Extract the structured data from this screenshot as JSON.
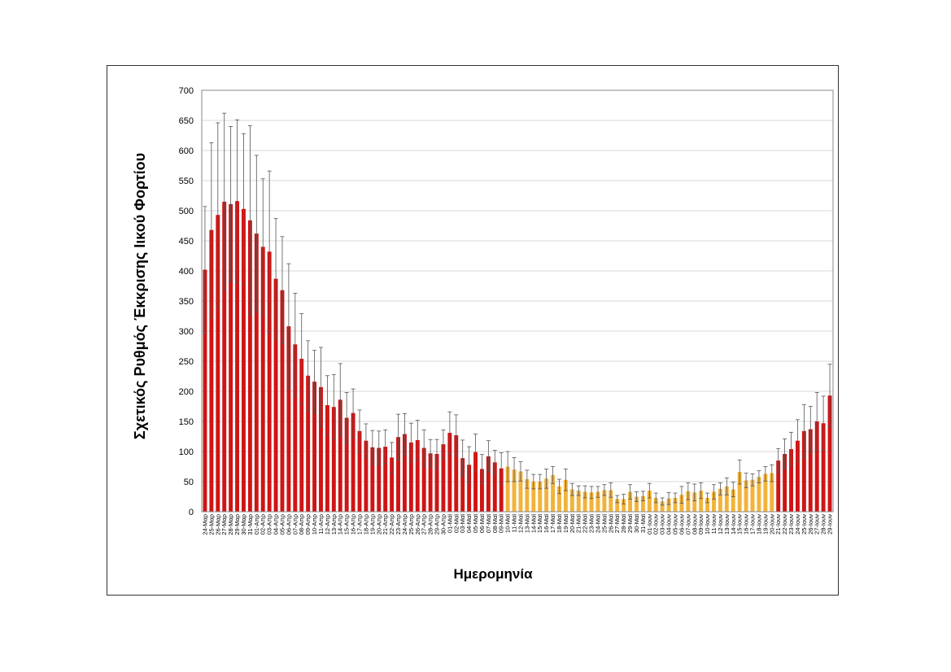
{
  "chart_data": {
    "type": "bar",
    "xlabel": "Ημερομηνία",
    "ylabel": "Σχετικός Ρυθμός Έκκρισης Ιικού Φορτίου",
    "ylim": [
      0,
      700
    ],
    "yticks": [
      0,
      50,
      100,
      150,
      200,
      250,
      300,
      350,
      400,
      450,
      500,
      550,
      600,
      650,
      700
    ],
    "grid": "horizontal",
    "colors": {
      "high": "#d01414",
      "low": "#f2b33a",
      "error_bar": "#555555",
      "grid": "#d9d9d9"
    },
    "categories": [
      "24-Μαρ",
      "25-Μαρ",
      "26-Μαρ",
      "27-Μαρ",
      "28-Μαρ",
      "29-Μαρ",
      "30-Μαρ",
      "31-Μαρ",
      "01-Απρ",
      "02-Απρ",
      "03-Απρ",
      "04-Απρ",
      "05-Απρ",
      "06-Απρ",
      "07-Απρ",
      "08-Απρ",
      "09-Απρ",
      "10-Απρ",
      "11-Απρ",
      "12-Απρ",
      "13-Απρ",
      "14-Απρ",
      "15-Απρ",
      "16-Απρ",
      "17-Απρ",
      "18-Απρ",
      "19-Απρ",
      "20-Απρ",
      "21-Απρ",
      "22-Απρ",
      "23-Απρ",
      "24-Απρ",
      "25-Απρ",
      "26-Απρ",
      "27-Απρ",
      "28-Απρ",
      "29-Απρ",
      "30-Απρ",
      "01-Μαϊ",
      "02-Μαϊ",
      "03-Μαϊ",
      "04-Μαϊ",
      "05-Μαϊ",
      "06-Μαϊ",
      "07-Μαϊ",
      "08-Μαϊ",
      "09-Μαϊ",
      "10-Μαϊ",
      "11-Μαϊ",
      "12-Μαϊ",
      "13-Μαϊ",
      "14-Μαϊ",
      "15-Μαϊ",
      "16-Μαϊ",
      "17-Μαϊ",
      "18-Μαϊ",
      "19-Μαϊ",
      "20-Μαϊ",
      "21-Μαϊ",
      "22-Μαϊ",
      "23-Μαϊ",
      "24-Μαϊ",
      "25-Μαϊ",
      "26-Μαϊ",
      "27-Μαϊ",
      "28-Μαϊ",
      "29-Μαϊ",
      "30-Μαϊ",
      "31-Μαϊ",
      "01-Ιουν",
      "02-Ιουν",
      "03-Ιουν",
      "04-Ιουν",
      "05-Ιουν",
      "06-Ιουν",
      "07-Ιουν",
      "08-Ιουν",
      "09-Ιουν",
      "10-Ιουν",
      "11-Ιουν",
      "12-Ιουν",
      "13-Ιουν",
      "14-Ιουν",
      "15-Ιουν",
      "16-Ιουν",
      "17-Ιουν",
      "18-Ιουν",
      "19-Ιουν",
      "20-Ιουν",
      "21-Ιουν",
      "22-Ιουν",
      "23-Ιουν",
      "24-Ιουν",
      "25-Ιουν",
      "26-Ιουν",
      "27-Ιουν",
      "28-Ιουν",
      "29-Ιουν"
    ],
    "values": [
      402,
      468,
      493,
      515,
      511,
      516,
      503,
      484,
      462,
      440,
      432,
      387,
      368,
      308,
      278,
      254,
      226,
      216,
      207,
      177,
      174,
      186,
      156,
      164,
      134,
      118,
      107,
      106,
      108,
      90,
      124,
      129,
      115,
      119,
      106,
      97,
      96,
      112,
      131,
      127,
      89,
      78,
      99,
      71,
      92,
      82,
      72,
      75,
      70,
      67,
      54,
      50,
      50,
      55,
      61,
      42,
      53,
      37,
      35,
      33,
      32,
      33,
      36,
      36,
      21,
      21,
      33,
      25,
      26,
      35,
      23,
      17,
      22,
      23,
      28,
      34,
      32,
      35,
      23,
      33,
      38,
      42,
      37,
      66,
      52,
      53,
      58,
      63,
      64,
      85,
      96,
      104,
      118,
      134,
      137,
      150,
      147,
      193
    ],
    "errors": [
      105,
      145,
      153,
      147,
      129,
      135,
      125,
      157,
      130,
      113,
      134,
      100,
      89,
      104,
      85,
      75,
      58,
      52,
      66,
      49,
      54,
      60,
      42,
      40,
      35,
      28,
      28,
      28,
      28,
      25,
      38,
      34,
      32,
      33,
      30,
      23,
      24,
      24,
      35,
      34,
      30,
      30,
      30,
      24,
      26,
      20,
      26,
      25,
      20,
      16,
      15,
      12,
      12,
      16,
      14,
      12,
      18,
      10,
      8,
      10,
      10,
      9,
      9,
      12,
      6,
      8,
      12,
      8,
      8,
      12,
      8,
      6,
      10,
      8,
      14,
      14,
      14,
      13,
      8,
      12,
      10,
      14,
      12,
      20,
      12,
      10,
      10,
      12,
      14,
      20,
      25,
      28,
      35,
      44,
      38,
      48,
      45,
      52
    ],
    "highlight_low_start": "10-Μαϊ",
    "highlight_low_end": "20-Ιουν"
  }
}
